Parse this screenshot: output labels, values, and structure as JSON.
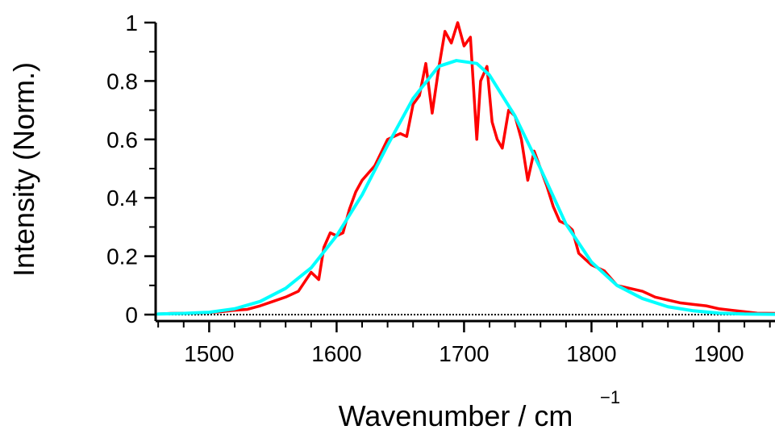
{
  "chart_data": {
    "type": "line",
    "xlabel": "Wavenumber / cm",
    "xlabel_superscript": "−1",
    "ylabel": "Intensity (Norm.)",
    "xlim": [
      1458,
      1944
    ],
    "ylim": [
      0,
      1
    ],
    "grid": false,
    "x_ticks": [
      1500,
      1600,
      1700,
      1800,
      1900
    ],
    "y_ticks": [
      {
        "value": 0,
        "label": "0"
      },
      {
        "value": 0.2,
        "label": "0.2"
      },
      {
        "value": 0.4,
        "label": "0.4"
      },
      {
        "value": 0.6,
        "label": "0.6"
      },
      {
        "value": 0.8,
        "label": "0.8"
      },
      {
        "value": 1,
        "label": "1"
      }
    ],
    "zero_line": true,
    "series": [
      {
        "color": "#ff0000",
        "x": [
          1460,
          1470,
          1480,
          1490,
          1500,
          1510,
          1520,
          1530,
          1540,
          1550,
          1560,
          1570,
          1580,
          1586,
          1590,
          1595,
          1600,
          1605,
          1610,
          1615,
          1620,
          1630,
          1640,
          1650,
          1655,
          1660,
          1665,
          1670,
          1675,
          1680,
          1685,
          1690,
          1695,
          1700,
          1705,
          1710,
          1713,
          1718,
          1722,
          1726,
          1730,
          1735,
          1740,
          1745,
          1750,
          1755,
          1760,
          1765,
          1770,
          1775,
          1780,
          1785,
          1790,
          1800,
          1810,
          1820,
          1830,
          1840,
          1850,
          1860,
          1870,
          1880,
          1890,
          1900,
          1910,
          1920,
          1930,
          1944
        ],
        "y": [
          0.002,
          0.004,
          0.005,
          0.005,
          0.007,
          0.01,
          0.015,
          0.018,
          0.03,
          0.045,
          0.06,
          0.08,
          0.145,
          0.12,
          0.23,
          0.28,
          0.27,
          0.28,
          0.36,
          0.42,
          0.46,
          0.51,
          0.6,
          0.62,
          0.61,
          0.72,
          0.75,
          0.86,
          0.69,
          0.84,
          0.97,
          0.93,
          1.0,
          0.92,
          0.95,
          0.6,
          0.8,
          0.85,
          0.66,
          0.6,
          0.57,
          0.7,
          0.68,
          0.6,
          0.46,
          0.56,
          0.5,
          0.44,
          0.37,
          0.32,
          0.31,
          0.29,
          0.21,
          0.17,
          0.15,
          0.1,
          0.09,
          0.08,
          0.06,
          0.05,
          0.04,
          0.035,
          0.03,
          0.02,
          0.015,
          0.01,
          0.005,
          0.004
        ]
      },
      {
        "color": "#00ffff",
        "x": [
          1460,
          1480,
          1500,
          1520,
          1540,
          1560,
          1580,
          1600,
          1620,
          1640,
          1660,
          1680,
          1694,
          1710,
          1720,
          1740,
          1760,
          1780,
          1800,
          1820,
          1840,
          1860,
          1880,
          1900,
          1920,
          1944
        ],
        "y": [
          0.002,
          0.004,
          0.008,
          0.02,
          0.045,
          0.09,
          0.16,
          0.27,
          0.41,
          0.58,
          0.74,
          0.85,
          0.87,
          0.86,
          0.82,
          0.68,
          0.5,
          0.31,
          0.18,
          0.1,
          0.055,
          0.027,
          0.013,
          0.005,
          0.002,
          0.001
        ]
      }
    ]
  }
}
